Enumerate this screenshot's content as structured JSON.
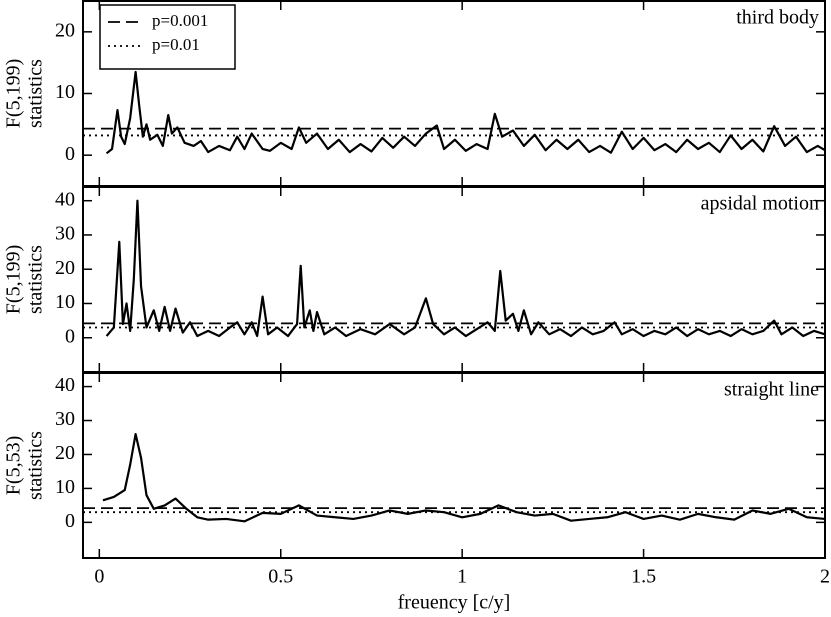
{
  "chart_data": [
    {
      "type": "line",
      "annotation": "third body",
      "ylabel": [
        "F(5,199)",
        "statistics"
      ],
      "xlim": [
        -0.045,
        2
      ],
      "ylim": [
        -5,
        25
      ],
      "yticks": [
        0,
        10,
        20
      ],
      "thresholds": [
        {
          "name": "p=0.001",
          "value": 4.3,
          "dash": "dashed"
        },
        {
          "name": "p=0.01",
          "value": 3.2,
          "dash": "dotted"
        }
      ],
      "legend": "upper left",
      "series": [
        {
          "color": "#000000",
          "x": [
            0.02,
            0.035,
            0.05,
            0.06,
            0.07,
            0.085,
            0.1,
            0.11,
            0.12,
            0.13,
            0.14,
            0.16,
            0.175,
            0.19,
            0.2,
            0.215,
            0.235,
            0.26,
            0.28,
            0.3,
            0.33,
            0.36,
            0.38,
            0.4,
            0.42,
            0.45,
            0.47,
            0.5,
            0.53,
            0.55,
            0.57,
            0.6,
            0.63,
            0.66,
            0.69,
            0.72,
            0.75,
            0.78,
            0.81,
            0.84,
            0.87,
            0.9,
            0.93,
            0.95,
            0.98,
            1.01,
            1.04,
            1.07,
            1.09,
            1.11,
            1.14,
            1.17,
            1.2,
            1.23,
            1.26,
            1.29,
            1.32,
            1.35,
            1.38,
            1.41,
            1.44,
            1.47,
            1.5,
            1.53,
            1.56,
            1.59,
            1.62,
            1.65,
            1.68,
            1.71,
            1.74,
            1.77,
            1.8,
            1.83,
            1.86,
            1.89,
            1.92,
            1.95,
            1.98,
            2.0
          ],
          "values": [
            0.3,
            1,
            7.3,
            3,
            1.8,
            6,
            13.5,
            8,
            3,
            5,
            2.5,
            3.3,
            1.5,
            6.5,
            3.5,
            4.5,
            2,
            1.5,
            2.3,
            0.5,
            1.5,
            0.8,
            3,
            1,
            3.5,
            1,
            0.7,
            2,
            1,
            4.5,
            2,
            3.5,
            1,
            2.5,
            0.5,
            1.8,
            0.6,
            2.8,
            1.2,
            3,
            1.5,
            3.5,
            4.8,
            1,
            2.5,
            0.7,
            1.8,
            1,
            6.7,
            3,
            4,
            1.5,
            3.3,
            0.8,
            2.5,
            1,
            2.5,
            0.5,
            1.5,
            0.4,
            3.8,
            1,
            2.8,
            0.8,
            1.8,
            0.5,
            2.5,
            1,
            2,
            0.5,
            3.2,
            1,
            2.5,
            0.6,
            4.7,
            1.5,
            3,
            0.5,
            1.5,
            0.8
          ]
        }
      ]
    },
    {
      "type": "line",
      "annotation": "apsidal motion",
      "ylabel": [
        "F(5,199)",
        "statistics"
      ],
      "xlim": [
        -0.045,
        2
      ],
      "ylim": [
        -10,
        44
      ],
      "yticks": [
        0,
        10,
        20,
        30,
        40
      ],
      "thresholds": [
        {
          "value": 4.2,
          "dash": "dashed"
        },
        {
          "value": 3.0,
          "dash": "dotted"
        }
      ],
      "series": [
        {
          "color": "#000000",
          "x": [
            0.02,
            0.04,
            0.055,
            0.065,
            0.075,
            0.085,
            0.095,
            0.105,
            0.115,
            0.13,
            0.15,
            0.165,
            0.18,
            0.195,
            0.21,
            0.23,
            0.25,
            0.27,
            0.3,
            0.33,
            0.36,
            0.38,
            0.4,
            0.42,
            0.435,
            0.45,
            0.465,
            0.49,
            0.52,
            0.545,
            0.555,
            0.565,
            0.58,
            0.59,
            0.6,
            0.62,
            0.65,
            0.68,
            0.72,
            0.76,
            0.8,
            0.84,
            0.87,
            0.9,
            0.92,
            0.95,
            0.98,
            1.01,
            1.04,
            1.07,
            1.09,
            1.105,
            1.12,
            1.14,
            1.155,
            1.17,
            1.19,
            1.21,
            1.24,
            1.27,
            1.3,
            1.33,
            1.36,
            1.39,
            1.42,
            1.44,
            1.47,
            1.5,
            1.53,
            1.56,
            1.59,
            1.62,
            1.65,
            1.68,
            1.71,
            1.74,
            1.77,
            1.8,
            1.83,
            1.86,
            1.88,
            1.91,
            1.94,
            1.97,
            2.0
          ],
          "values": [
            0.5,
            3,
            28,
            4,
            10,
            2,
            17,
            40,
            15,
            3,
            8,
            2,
            9,
            2,
            8.5,
            1.5,
            4.5,
            0.5,
            2,
            0.5,
            3,
            4.5,
            1,
            4.5,
            0.5,
            12,
            1,
            3,
            0.5,
            4,
            21,
            3,
            8,
            2,
            7.5,
            1,
            3,
            0.5,
            2.5,
            1,
            4,
            1,
            3,
            11.5,
            4,
            1,
            3,
            0.5,
            2.5,
            4.5,
            2,
            19.5,
            5,
            7,
            2,
            8,
            1,
            4.5,
            1,
            2.5,
            0.5,
            3,
            1,
            2,
            4.5,
            1,
            2.5,
            0.5,
            2,
            1,
            3,
            0.5,
            2.5,
            1,
            2,
            0.5,
            2.5,
            1,
            2,
            5,
            1,
            3,
            0.5,
            2,
            1
          ]
        }
      ]
    },
    {
      "type": "line",
      "annotation": "straight line",
      "ylabel": [
        "F(5,53)",
        "statistics"
      ],
      "xlim": [
        -0.045,
        2
      ],
      "ylim": [
        -10.5,
        44
      ],
      "yticks": [
        0,
        10,
        20,
        30,
        40
      ],
      "xticks": [
        0,
        0.5,
        1,
        1.5,
        2
      ],
      "xlabel": "freuency [c/y]",
      "thresholds": [
        {
          "value": 4.2,
          "dash": "dashed"
        },
        {
          "value": 3.0,
          "dash": "dotted"
        }
      ],
      "series": [
        {
          "color": "#000000",
          "x": [
            0.01,
            0.04,
            0.07,
            0.085,
            0.1,
            0.115,
            0.13,
            0.15,
            0.18,
            0.21,
            0.24,
            0.27,
            0.3,
            0.35,
            0.4,
            0.45,
            0.5,
            0.55,
            0.6,
            0.65,
            0.7,
            0.75,
            0.8,
            0.85,
            0.9,
            0.95,
            1.0,
            1.05,
            1.1,
            1.15,
            1.2,
            1.25,
            1.3,
            1.35,
            1.4,
            1.45,
            1.5,
            1.55,
            1.6,
            1.65,
            1.7,
            1.75,
            1.8,
            1.85,
            1.9,
            1.95,
            2.0
          ],
          "values": [
            6.5,
            7.5,
            9.5,
            17,
            26,
            19,
            8,
            4,
            5,
            7,
            4,
            1.5,
            0.8,
            1,
            0.3,
            2.8,
            2.5,
            5,
            2,
            1.5,
            1,
            2,
            3.5,
            2.5,
            3.5,
            3,
            1.5,
            2.5,
            5,
            3,
            2,
            2.5,
            0.5,
            1,
            1.5,
            3,
            1,
            2,
            0.8,
            2.5,
            1.5,
            0.8,
            3.5,
            2.5,
            4,
            1.5,
            1
          ]
        }
      ]
    }
  ]
}
